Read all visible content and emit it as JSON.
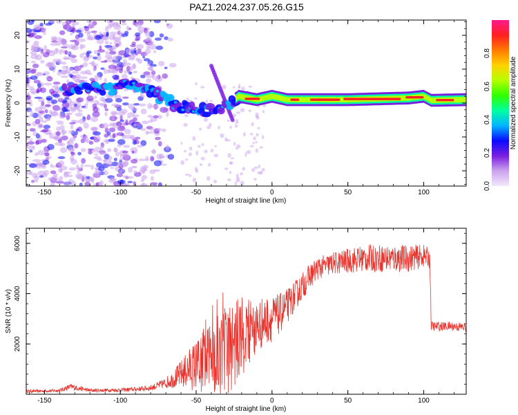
{
  "title": "PAZ1.2024.237.05.26.G15",
  "chart_data": [
    {
      "type": "heatmap",
      "xlabel": "Height of straight line (km)",
      "ylabel": "Frequency (Hz)",
      "xlim": [
        -162,
        128
      ],
      "ylim": [
        -24.5,
        24.5
      ],
      "xticks": [
        -150,
        -100,
        -50,
        0,
        50,
        100
      ],
      "yticks": [
        -20,
        -10,
        0,
        10,
        20
      ],
      "colorbar": {
        "label": "Normalized spectral amplitude",
        "range": [
          0,
          1
        ],
        "ticks": [
          "0.0",
          "0.2",
          "0.4",
          "0.6",
          "0.8"
        ],
        "palette": [
          "#f3e8fb",
          "#cba4ee",
          "#7a1fe0",
          "#0a0aff",
          "#00b4ff",
          "#00ffa0",
          "#30ff00",
          "#b4ff00",
          "#ffd200",
          "#ff7a00",
          "#ff2020",
          "#ff1a8c"
        ]
      },
      "ridge": [
        {
          "x": -137,
          "y": 3.5
        },
        {
          "x": -120,
          "y": 4
        },
        {
          "x": -105,
          "y": 4.5
        },
        {
          "x": -95,
          "y": 6
        },
        {
          "x": -85,
          "y": 4
        },
        {
          "x": -78,
          "y": 3
        },
        {
          "x": -70,
          "y": 1
        },
        {
          "x": -60,
          "y": -1
        },
        {
          "x": -50,
          "y": -2
        },
        {
          "x": -40,
          "y": -2
        },
        {
          "x": -30,
          "y": -1
        },
        {
          "x": -22,
          "y": 2
        },
        {
          "x": -10,
          "y": 1
        },
        {
          "x": 0,
          "y": 2
        },
        {
          "x": 10,
          "y": 1
        },
        {
          "x": 50,
          "y": 1
        },
        {
          "x": 90,
          "y": 1.5
        },
        {
          "x": 100,
          "y": 2
        },
        {
          "x": 105,
          "y": 0.8
        },
        {
          "x": 128,
          "y": 1
        }
      ]
    },
    {
      "type": "line",
      "xlabel": "Height of straight line (km)",
      "ylabel": "SNR (10 * v/v)",
      "xlim": [
        -162,
        128
      ],
      "ylim": [
        0,
        6600
      ],
      "xticks": [
        -150,
        -100,
        -50,
        0,
        50,
        100
      ],
      "yticks": [
        2000,
        4000,
        6000
      ],
      "line_color": "#e8322c",
      "series": [
        {
          "x": [
            -162,
            -150,
            -140,
            -133,
            -120,
            -110,
            -100,
            -90,
            -80,
            -75,
            -70,
            -65,
            -60,
            -55,
            -50,
            -45,
            -40,
            -35,
            -30,
            -25,
            -20,
            -15,
            -10,
            -5,
            0,
            5,
            10,
            15,
            20,
            25,
            30,
            40,
            50,
            60,
            70,
            80,
            90,
            100,
            104,
            105,
            110,
            120,
            128
          ],
          "y": [
            120,
            130,
            150,
            300,
            150,
            160,
            170,
            200,
            250,
            350,
            450,
            600,
            800,
            1000,
            1150,
            1300,
            1400,
            1600,
            1700,
            2000,
            2300,
            2500,
            2700,
            2900,
            3000,
            3200,
            3500,
            3900,
            4300,
            4700,
            5000,
            5200,
            5300,
            5400,
            5400,
            5400,
            5400,
            5500,
            5400,
            2700,
            2700,
            2700,
            2650
          ],
          "noise": [
            60,
            60,
            70,
            120,
            70,
            70,
            80,
            90,
            120,
            150,
            220,
            350,
            550,
            800,
            1050,
            1250,
            1400,
            1700,
            1900,
            1700,
            1600,
            1300,
            1100,
            1000,
            900,
            800,
            700,
            600,
            550,
            500,
            450,
            450,
            500,
            550,
            550,
            550,
            550,
            450,
            400,
            200,
            180,
            180,
            200
          ]
        }
      ]
    }
  ]
}
